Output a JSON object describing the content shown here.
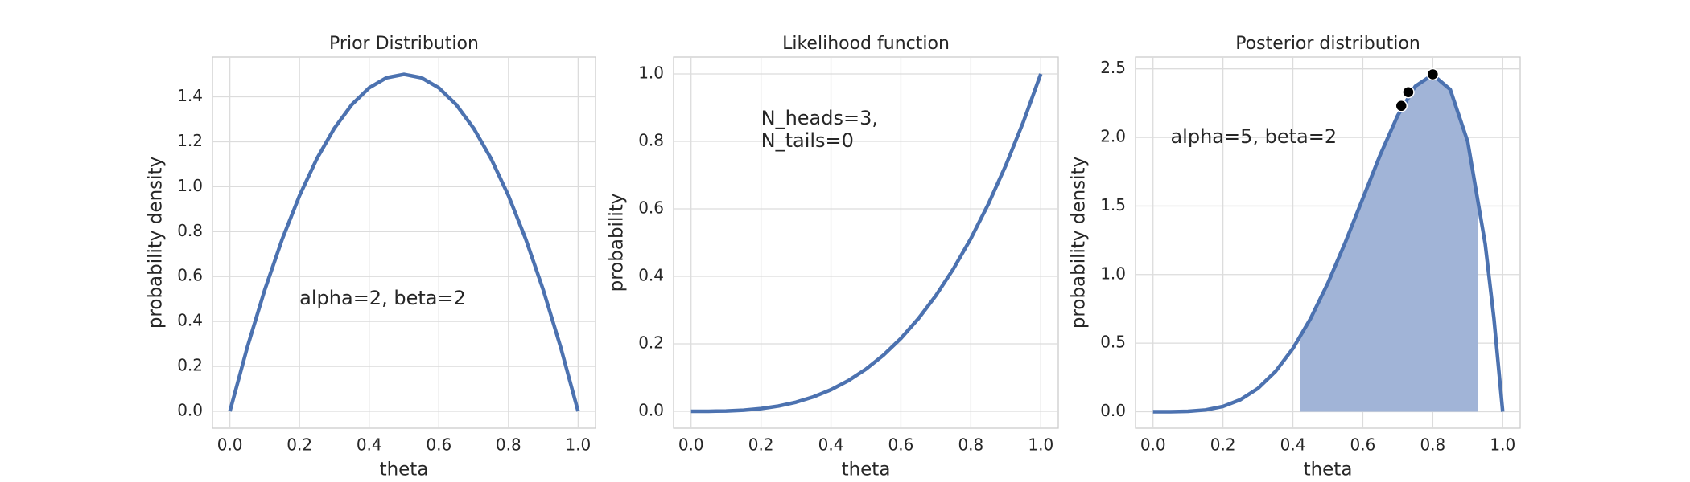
{
  "chart_data": [
    {
      "type": "line",
      "title": "Prior Distribution",
      "xlabel": "theta",
      "ylabel": "probability density",
      "annotation": [
        "alpha=2, beta=2"
      ],
      "xlim": [
        -0.05,
        1.05
      ],
      "ylim": [
        -0.075,
        1.577
      ],
      "xticks": [
        {
          "value": 0,
          "label": "0.0"
        },
        {
          "value": 0.2,
          "label": "0.2"
        },
        {
          "value": 0.4,
          "label": "0.4"
        },
        {
          "value": 0.6,
          "label": "0.6"
        },
        {
          "value": 0.8,
          "label": "0.8"
        },
        {
          "value": 1,
          "label": "1.0"
        }
      ],
      "yticks": [
        {
          "value": 0,
          "label": "0.0"
        },
        0.2,
        0.4,
        0.6,
        0.8,
        {
          "value": 1,
          "label": "1.0"
        },
        1.2,
        1.4
      ],
      "grid": true,
      "series": [
        {
          "color": "#4c72b0",
          "x": [
            0,
            0.05,
            0.1,
            0.15,
            0.2,
            0.25,
            0.3,
            0.35,
            0.4,
            0.45,
            0.5,
            0.55,
            0.6,
            0.65,
            0.7,
            0.75,
            0.8,
            0.85,
            0.9,
            0.95,
            1
          ],
          "values": [
            0,
            0.285,
            0.54,
            0.765,
            0.96,
            1.125,
            1.26,
            1.365,
            1.44,
            1.485,
            1.5,
            1.485,
            1.44,
            1.365,
            1.26,
            1.125,
            0.96,
            0.765,
            0.54,
            0.285,
            0
          ]
        }
      ]
    },
    {
      "type": "line",
      "title": "Likelihood function",
      "xlabel": "theta",
      "ylabel": "probability",
      "annotation": [
        "N_heads=3,",
        "N_tails=0"
      ],
      "xlim": [
        -0.05,
        1.05
      ],
      "ylim": [
        -0.05,
        1.05
      ],
      "xticks": [
        {
          "value": 0,
          "label": "0.0"
        },
        {
          "value": 0.2,
          "label": "0.2"
        },
        {
          "value": 0.4,
          "label": "0.4"
        },
        {
          "value": 0.6,
          "label": "0.6"
        },
        {
          "value": 0.8,
          "label": "0.8"
        },
        {
          "value": 1,
          "label": "1.0"
        }
      ],
      "yticks": [
        {
          "value": 0,
          "label": "0.0"
        },
        0.2,
        0.4,
        0.6,
        0.8,
        {
          "value": 1,
          "label": "1.0"
        }
      ],
      "grid": true,
      "series": [
        {
          "color": "#4c72b0",
          "x": [
            0,
            0.05,
            0.1,
            0.15,
            0.2,
            0.25,
            0.3,
            0.35,
            0.4,
            0.45,
            0.5,
            0.55,
            0.6,
            0.65,
            0.7,
            0.75,
            0.8,
            0.85,
            0.9,
            0.95,
            1
          ],
          "values": [
            0,
            0.000125,
            0.001,
            0.003375,
            0.008,
            0.015625,
            0.027,
            0.042875,
            0.064,
            0.091125,
            0.125,
            0.166375,
            0.216,
            0.274625,
            0.343,
            0.421875,
            0.512,
            0.614125,
            0.729,
            0.857375,
            1
          ]
        }
      ]
    },
    {
      "type": "line",
      "title": "Posterior distribution",
      "xlabel": "theta",
      "ylabel": "probability density",
      "annotation": [
        "alpha=5, beta=2"
      ],
      "xlim": [
        -0.05,
        1.05
      ],
      "ylim": [
        -0.12,
        2.586
      ],
      "xticks": [
        {
          "value": 0,
          "label": "0.0"
        },
        {
          "value": 0.2,
          "label": "0.2"
        },
        {
          "value": 0.4,
          "label": "0.4"
        },
        {
          "value": 0.6,
          "label": "0.6"
        },
        {
          "value": 0.8,
          "label": "0.8"
        },
        {
          "value": 1,
          "label": "1.0"
        }
      ],
      "yticks": [
        {
          "value": 0,
          "label": "0.0"
        },
        0.5,
        {
          "value": 1,
          "label": "1.0"
        },
        1.5,
        {
          "value": 2,
          "label": "2.0"
        },
        2.5
      ],
      "grid": true,
      "fill": {
        "color": "#a1b4d7",
        "x": [
          0.42,
          0.45,
          0.5,
          0.55,
          0.6,
          0.65,
          0.7,
          0.75,
          0.8,
          0.85,
          0.9,
          0.93
        ],
        "values": [
          0.5414,
          0.6766,
          0.9375,
          1.2353,
          1.5552,
          1.8743,
          2.1609,
          2.373,
          2.4576,
          2.349,
          1.9683,
          1.5709
        ]
      },
      "series": [
        {
          "color": "#4c72b0",
          "x": [
            0,
            0.05,
            0.1,
            0.15,
            0.2,
            0.25,
            0.3,
            0.35,
            0.4,
            0.45,
            0.5,
            0.55,
            0.6,
            0.65,
            0.7,
            0.75,
            0.8,
            0.85,
            0.9,
            0.95,
            0.975,
            1
          ],
          "values": [
            0,
            0.000178,
            0.0027,
            0.01291,
            0.0384,
            0.08789,
            0.1701,
            0.2926,
            0.4608,
            0.6766,
            0.9375,
            1.2353,
            1.5552,
            1.8743,
            2.1609,
            2.373,
            2.4576,
            2.349,
            1.9683,
            1.2218,
            0.6778,
            0
          ]
        }
      ],
      "points": {
        "color": "#000000",
        "x": [
          0.71,
          0.73,
          0.8
        ],
        "values": [
          2.23,
          2.33,
          2.46
        ]
      }
    }
  ]
}
